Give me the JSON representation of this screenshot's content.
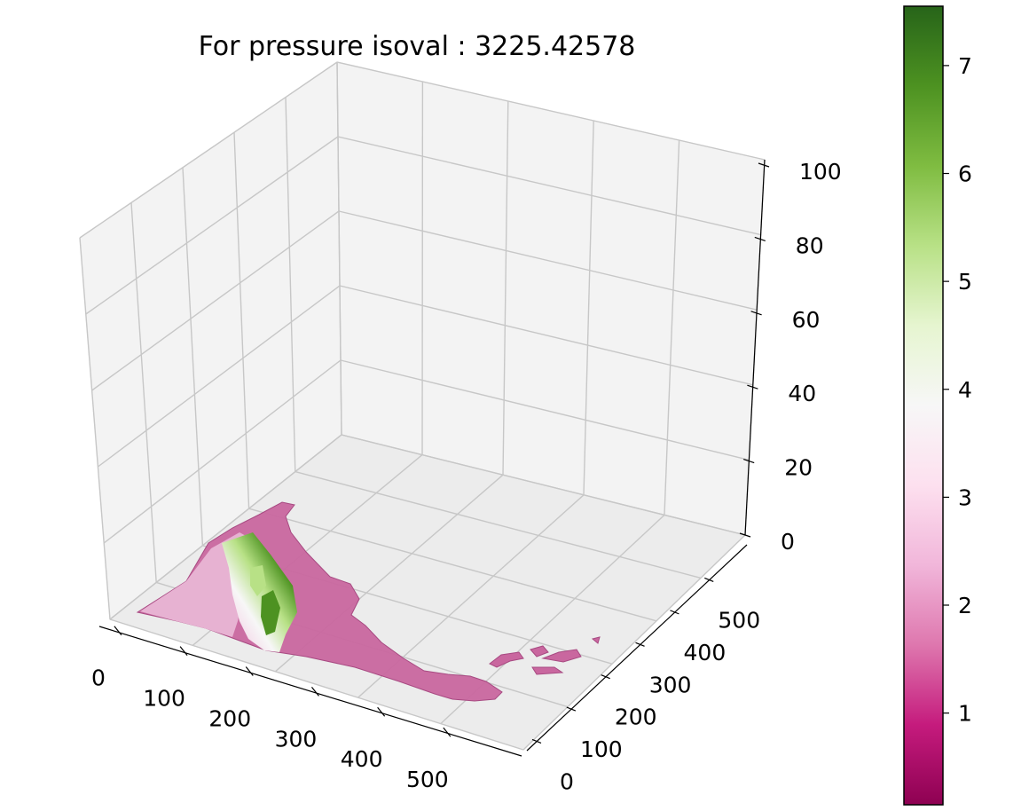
{
  "chart_data": {
    "type": "surface3d",
    "title": "For pressure isoval : 3225.42578",
    "xlabel": "",
    "ylabel": "",
    "zlabel": "",
    "grid": true,
    "xlim": [
      0,
      500
    ],
    "ylim": [
      0,
      500
    ],
    "zlim": [
      0,
      100
    ],
    "x_ticks": [
      "0",
      "100",
      "200",
      "300",
      "400",
      "500"
    ],
    "y_ticks": [
      "0",
      "100",
      "200",
      "300",
      "400",
      "500"
    ],
    "z_ticks": [
      "0",
      "20",
      "40",
      "60",
      "80",
      "100"
    ],
    "colorbar": {
      "colormap": "PiYG",
      "range": [
        0.15,
        7.55
      ],
      "ticks": [
        "1",
        "2",
        "3",
        "4",
        "5",
        "6",
        "7"
      ]
    },
    "colors": {
      "low": "#8e0152",
      "mid": "#f7f7f7",
      "high": "#276419",
      "pane": "#f2f2f2",
      "grid": "#c7c7c7"
    }
  }
}
